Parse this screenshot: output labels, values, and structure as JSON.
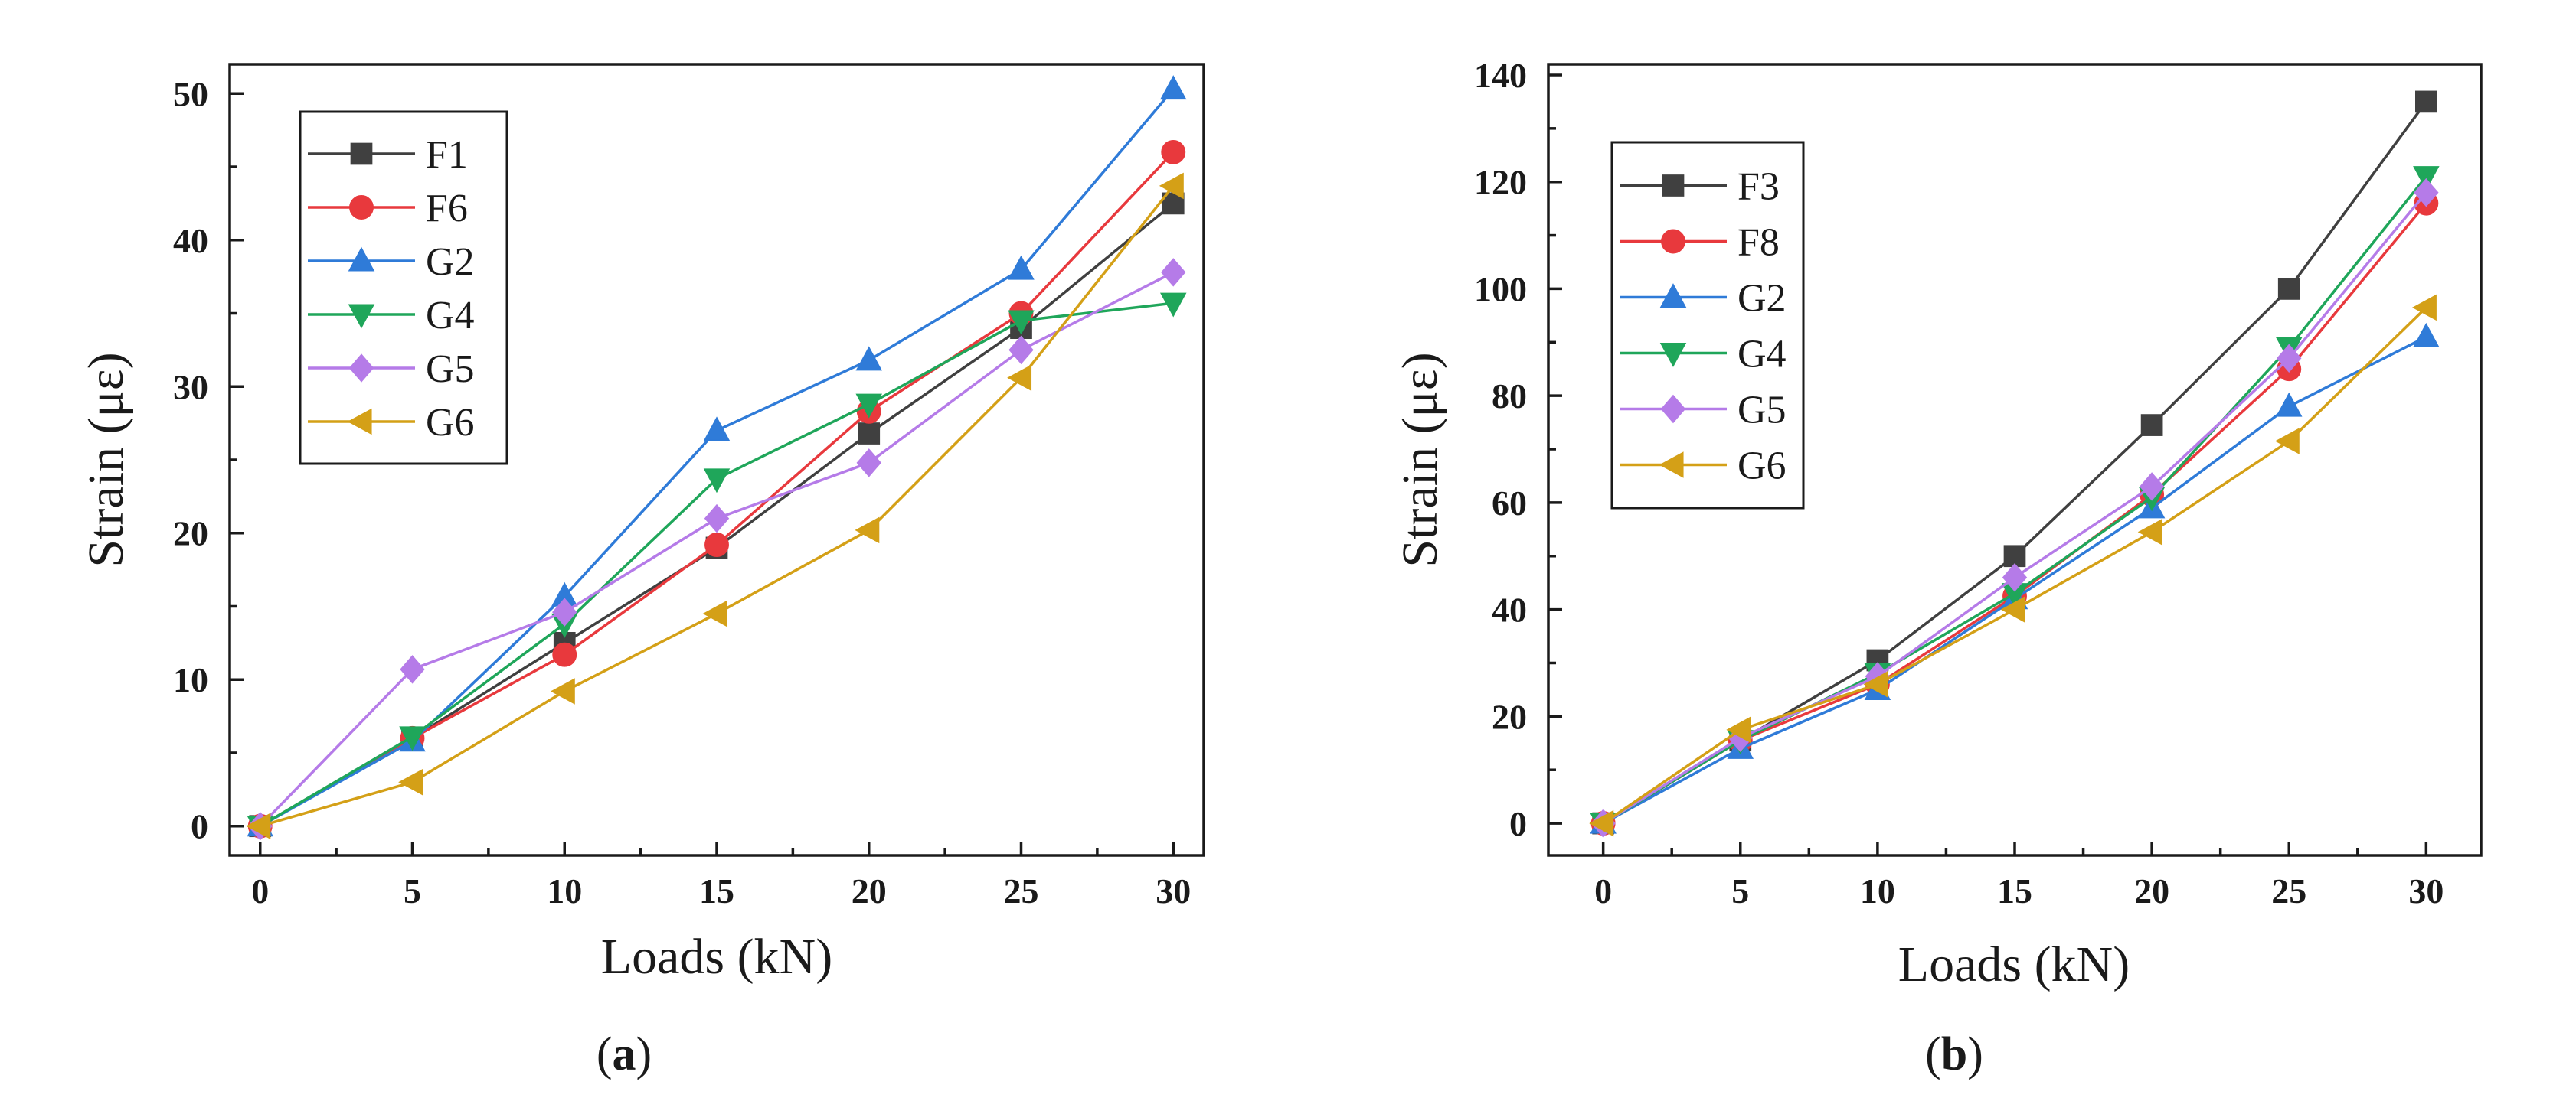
{
  "chart_data": [
    {
      "type": "line",
      "panel": "a",
      "caption": {
        "open": "(",
        "letter": "a",
        "close": ")"
      },
      "xlabel": "Loads (kN)",
      "ylabel": "Strain (με)",
      "xlim": [
        -1,
        31
      ],
      "ylim": [
        -2,
        52
      ],
      "xticks": [
        0,
        5,
        10,
        15,
        20,
        25,
        30
      ],
      "yticks": [
        0,
        10,
        20,
        30,
        40,
        50
      ],
      "x": [
        0,
        5,
        10,
        15,
        20,
        25,
        30
      ],
      "legend_position": "top-left",
      "series": [
        {
          "name": "F1",
          "marker": "square",
          "color": "#404040",
          "values": [
            0,
            6,
            12.5,
            19,
            26.8,
            34,
            42.5
          ]
        },
        {
          "name": "F6",
          "marker": "circle",
          "color": "#e8393d",
          "values": [
            0,
            6,
            11.7,
            19.2,
            28.3,
            35,
            46
          ]
        },
        {
          "name": "G2",
          "marker": "triangle-up",
          "color": "#2f7bd8",
          "values": [
            0,
            5.8,
            15.7,
            27,
            31.8,
            38,
            50.3
          ]
        },
        {
          "name": "G4",
          "marker": "triangle-down",
          "color": "#1fa65a",
          "values": [
            0,
            6.1,
            13.8,
            23.7,
            28.8,
            34.5,
            35.7
          ]
        },
        {
          "name": "G5",
          "marker": "diamond",
          "color": "#b57be8",
          "values": [
            0,
            10.7,
            14.6,
            21,
            24.8,
            32.5,
            37.8
          ]
        },
        {
          "name": "G6",
          "marker": "triangle-left",
          "color": "#d4a017",
          "values": [
            0,
            3,
            9.2,
            14.5,
            20.2,
            30.6,
            43.7
          ]
        }
      ]
    },
    {
      "type": "line",
      "panel": "b",
      "caption": {
        "open": "(",
        "letter": "b",
        "close": ")"
      },
      "xlabel": "Loads (kN)",
      "ylabel": "Strain (με)",
      "xlim": [
        -2,
        32
      ],
      "ylim": [
        -6,
        142
      ],
      "xticks": [
        0,
        5,
        10,
        15,
        20,
        25,
        30
      ],
      "yticks": [
        0,
        20,
        40,
        60,
        80,
        100,
        120,
        140
      ],
      "x": [
        0,
        5,
        10,
        15,
        20,
        25,
        30
      ],
      "legend_position": "top-left",
      "series": [
        {
          "name": "F3",
          "marker": "square",
          "color": "#404040",
          "values": [
            0,
            15.5,
            30.5,
            50,
            74.5,
            100,
            135
          ]
        },
        {
          "name": "F8",
          "marker": "circle",
          "color": "#e8393d",
          "values": [
            0,
            15.5,
            26,
            42.5,
            61.5,
            85,
            116
          ]
        },
        {
          "name": "G2",
          "marker": "triangle-up",
          "color": "#2f7bd8",
          "values": [
            0,
            14,
            25,
            42,
            59,
            78,
            91
          ]
        },
        {
          "name": "G4",
          "marker": "triangle-down",
          "color": "#1fa65a",
          "values": [
            0,
            15.5,
            28,
            43,
            61,
            89,
            121
          ]
        },
        {
          "name": "G5",
          "marker": "diamond",
          "color": "#b57be8",
          "values": [
            0,
            16,
            27.5,
            46,
            63,
            87,
            118
          ]
        },
        {
          "name": "G6",
          "marker": "triangle-left",
          "color": "#d4a017",
          "values": [
            0,
            17.5,
            26,
            40,
            54.5,
            71.5,
            96.5
          ]
        }
      ]
    }
  ]
}
